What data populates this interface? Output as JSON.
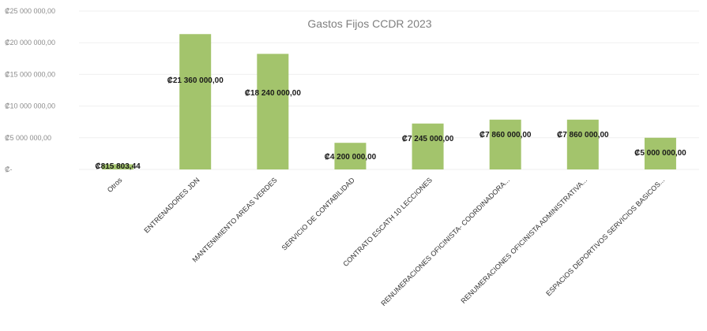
{
  "chart_data": {
    "type": "bar",
    "title": "Gastos Fijos CCDR 2023",
    "xlabel": "",
    "ylabel": "",
    "ylim": [
      0,
      25000000
    ],
    "yticks": [
      {
        "value": 0,
        "label": "₡-"
      },
      {
        "value": 5000000,
        "label": "₡5 000 000,00"
      },
      {
        "value": 10000000,
        "label": "₡10 000 000,00"
      },
      {
        "value": 15000000,
        "label": "₡15 000 000,00"
      },
      {
        "value": 20000000,
        "label": "₡20 000 000,00"
      },
      {
        "value": 25000000,
        "label": "₡25 000 000,00"
      }
    ],
    "categories": [
      "Otros",
      "ENTRENADORES JDN",
      "MANTENIMIENTO AREAS VERDES",
      "SERVICIO DE CONTABILIDAD",
      "CONTRATO ESCATH 10 LECCIONES",
      "RENUMERACIONES OFICINISTA- COORDINADORA...",
      "RENUMERACIONES OFICINISTA ADMINISTRATIVA...",
      "ESPACIOS DEPORTIVOS SERVICIOS BASICOS..."
    ],
    "values": [
      815803.44,
      21360000,
      18240000,
      4200000,
      7245000,
      7860000,
      7860000,
      5000000
    ],
    "data_labels": [
      "₡815 803,44",
      "₡21 360 000,00",
      "₡18 240 000,00",
      "₡4 200 000,00",
      "₡7 245 000,00",
      "₡7 860 000,00",
      "₡7 860 000,00",
      "₡5 000 000,00"
    ],
    "grid": true,
    "legend": "none",
    "colors": {
      "bar": "#a3c46c",
      "grid": "#efefef",
      "tick_text": "#8c8c8c",
      "title": "#7f7f7f"
    }
  }
}
